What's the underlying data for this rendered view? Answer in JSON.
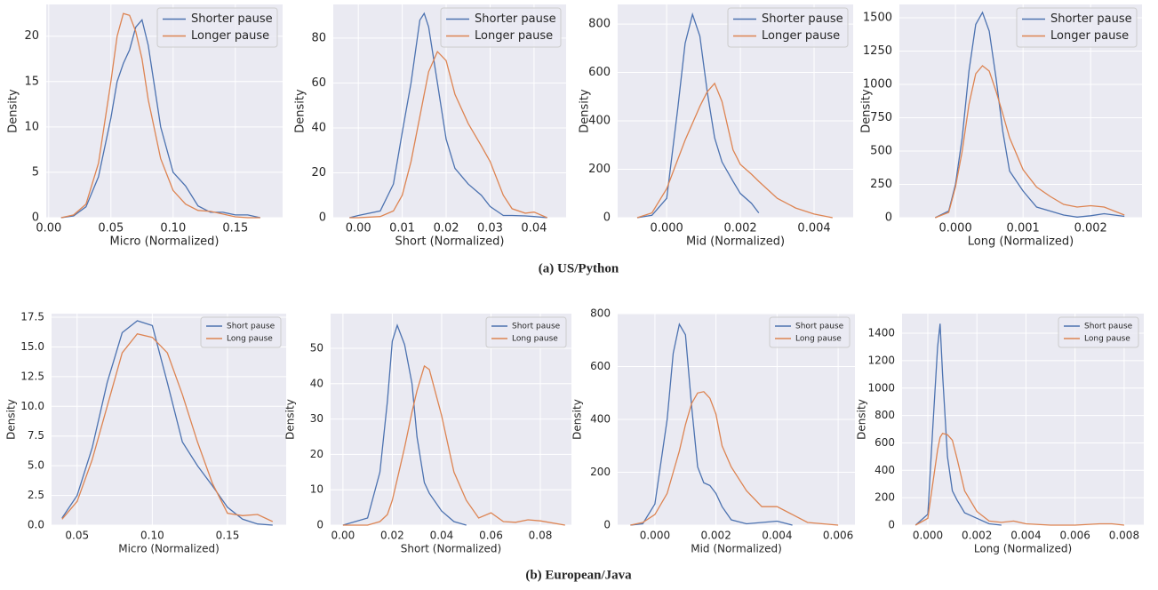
{
  "captions": [
    "(a) US/Python",
    "(b) European/Java"
  ],
  "chart_data": [
    {
      "type": "line",
      "xlabel": "Micro (Normalized)",
      "ylabel": "Density",
      "grid": true,
      "legend": "upper right",
      "x": [
        0.01,
        0.02,
        0.03,
        0.04,
        0.05,
        0.055,
        0.06,
        0.065,
        0.07,
        0.075,
        0.08,
        0.09,
        0.1,
        0.11,
        0.12,
        0.13,
        0.14,
        0.15,
        0.16,
        0.17
      ],
      "series": [
        {
          "name": "Shorter pause",
          "color": "#4c72b0",
          "values": [
            0,
            0.2,
            1.2,
            4.5,
            11,
            15,
            17,
            18.5,
            21,
            21.8,
            19,
            10,
            5,
            3.5,
            1.3,
            0.6,
            0.6,
            0.3,
            0.3,
            0
          ]
        },
        {
          "name": "Longer pause",
          "color": "#dd8452",
          "values": [
            0,
            0.3,
            1.5,
            6,
            15,
            20,
            22.5,
            22.3,
            20.5,
            17.5,
            13,
            6.5,
            3,
            1.5,
            0.8,
            0.7,
            0.4,
            0.1,
            0,
            0
          ]
        }
      ],
      "xlim": [
        -0.002,
        0.188
      ],
      "ylim": [
        0,
        23.5
      ],
      "xticks": [
        {
          "value": 0,
          "label": "0.00"
        },
        {
          "value": 0.05,
          "label": "0.05"
        },
        {
          "value": 0.1,
          "label": "0.10"
        },
        {
          "value": 0.15,
          "label": "0.15"
        }
      ],
      "yticks": [
        0,
        5,
        10,
        15,
        20
      ]
    },
    {
      "type": "line",
      "xlabel": "Short (Normalized)",
      "ylabel": "Density",
      "grid": true,
      "legend": "upper right",
      "x": [
        -0.002,
        0,
        0.005,
        0.008,
        0.01,
        0.012,
        0.014,
        0.015,
        0.016,
        0.018,
        0.02,
        0.022,
        0.025,
        0.028,
        0.03,
        0.033,
        0.035,
        0.038,
        0.04,
        0.043
      ],
      "series": [
        {
          "name": "Shorter pause",
          "color": "#4c72b0",
          "values": [
            0,
            1,
            3,
            15,
            38,
            60,
            88,
            91,
            85,
            60,
            35,
            22,
            15,
            10,
            5,
            1,
            1,
            0.8,
            0.5,
            0
          ]
        },
        {
          "name": "Longer pause",
          "color": "#dd8452",
          "values": [
            0,
            0,
            0.5,
            3,
            10,
            25,
            45,
            55,
            65,
            74,
            70,
            55,
            42,
            32,
            25,
            10,
            4,
            2,
            2.5,
            0
          ]
        }
      ],
      "xlim": [
        -0.0057,
        0.0473
      ],
      "ylim": [
        0,
        95
      ],
      "xticks": [
        {
          "value": 0,
          "label": "0.00"
        },
        {
          "value": 0.01,
          "label": "0.01"
        },
        {
          "value": 0.02,
          "label": "0.02"
        },
        {
          "value": 0.03,
          "label": "0.03"
        },
        {
          "value": 0.04,
          "label": "0.04"
        }
      ],
      "yticks": [
        0,
        20,
        40,
        60,
        80
      ]
    },
    {
      "type": "line",
      "xlabel": "Mid (Normalized)",
      "ylabel": "Density",
      "grid": true,
      "legend": "upper right",
      "x": [
        -0.0008,
        -0.0004,
        0,
        0.0003,
        0.0005,
        0.0007,
        0.0009,
        0.0011,
        0.0013,
        0.0015,
        0.0018,
        0.002,
        0.0023,
        0.0025,
        0.003,
        0.0035,
        0.004,
        0.0045
      ],
      "series": [
        {
          "name": "Shorter pause",
          "color": "#4c72b0",
          "values": [
            0,
            10,
            80,
            450,
            720,
            840,
            750,
            520,
            330,
            230,
            150,
            100,
            60,
            20,
            null,
            null,
            null,
            null
          ]
        },
        {
          "name": "Longer pause",
          "color": "#dd8452",
          "values": [
            0,
            20,
            120,
            240,
            320,
            390,
            460,
            520,
            555,
            480,
            280,
            220,
            180,
            150,
            80,
            40,
            15,
            0
          ]
        }
      ],
      "xlim": [
        -0.00133,
        0.00506
      ],
      "ylim": [
        0,
        881
      ],
      "xticks": [
        {
          "value": 0,
          "label": "0.000"
        },
        {
          "value": 0.002,
          "label": "0.002"
        },
        {
          "value": 0.004,
          "label": "0.004"
        }
      ],
      "yticks": [
        0,
        200,
        400,
        600,
        800
      ]
    },
    {
      "type": "line",
      "xlabel": "Long (Normalized)",
      "ylabel": "Density",
      "grid": true,
      "legend": "upper right",
      "x": [
        -0.0003,
        -0.0001,
        0,
        0.0001,
        0.0002,
        0.0003,
        0.0004,
        0.0005,
        0.0006,
        0.0007,
        0.0008,
        0.001,
        0.0012,
        0.0014,
        0.0016,
        0.0018,
        0.002,
        0.0022,
        0.0025
      ],
      "series": [
        {
          "name": "Shorter pause",
          "color": "#4c72b0",
          "values": [
            0,
            50,
            250,
            600,
            1100,
            1450,
            1540,
            1400,
            1050,
            650,
            350,
            200,
            80,
            50,
            20,
            5,
            15,
            30,
            10
          ]
        },
        {
          "name": "Longer pause",
          "color": "#dd8452",
          "values": [
            0,
            40,
            230,
            500,
            850,
            1080,
            1140,
            1100,
            950,
            780,
            600,
            360,
            230,
            160,
            100,
            80,
            90,
            80,
            20
          ]
        }
      ],
      "xlim": [
        -0.00083,
        0.00276
      ],
      "ylim": [
        0,
        1600
      ],
      "xticks": [
        {
          "value": 0,
          "label": "0.000"
        },
        {
          "value": 0.001,
          "label": "0.001"
        },
        {
          "value": 0.002,
          "label": "0.002"
        }
      ],
      "yticks": [
        0,
        250,
        500,
        750,
        1000,
        1250,
        1500
      ]
    },
    {
      "type": "line",
      "xlabel": "Micro (Normalized)",
      "ylabel": "Density",
      "grid": true,
      "legend": "upper right",
      "x": [
        0.04,
        0.05,
        0.06,
        0.07,
        0.08,
        0.09,
        0.1,
        0.11,
        0.12,
        0.13,
        0.14,
        0.15,
        0.16,
        0.17,
        0.18
      ],
      "series": [
        {
          "name": "Short pause",
          "color": "#4c72b0",
          "values": [
            0.6,
            2.5,
            6.5,
            12,
            16.2,
            17.2,
            16.8,
            12,
            7,
            5,
            3.3,
            1.5,
            0.5,
            0.1,
            0
          ]
        },
        {
          "name": "Long pause",
          "color": "#dd8452",
          "values": [
            0.5,
            2,
            5.5,
            10,
            14.5,
            16.1,
            15.8,
            14.5,
            11,
            7,
            3.5,
            1,
            0.8,
            0.9,
            0.3
          ]
        }
      ],
      "xlim": [
        0.033,
        0.189
      ],
      "ylim": [
        0,
        17.8
      ],
      "xticks": [
        {
          "value": 0.05,
          "label": "0.05"
        },
        {
          "value": 0.1,
          "label": "0.10"
        },
        {
          "value": 0.15,
          "label": "0.15"
        }
      ],
      "yticks": [
        {
          "value": 0,
          "label": "0.0"
        },
        2.5,
        {
          "value": 5,
          "label": "5.0"
        },
        7.5,
        {
          "value": 10,
          "label": "10.0"
        },
        12.5,
        {
          "value": 15,
          "label": "15.0"
        },
        17.5
      ]
    },
    {
      "type": "line",
      "xlabel": "Short (Normalized)",
      "ylabel": "Density",
      "grid": true,
      "legend": "upper right",
      "x": [
        0,
        0.01,
        0.015,
        0.018,
        0.02,
        0.022,
        0.025,
        0.028,
        0.03,
        0.033,
        0.035,
        0.04,
        0.045,
        0.05,
        0.055,
        0.06,
        0.065,
        0.07,
        0.075,
        0.08,
        0.09
      ],
      "series": [
        {
          "name": "Short pause",
          "color": "#4c72b0",
          "values": [
            0,
            2,
            15,
            35,
            52,
            56.5,
            51,
            40,
            25,
            12,
            9,
            4,
            1,
            0,
            null,
            null,
            null,
            null,
            null,
            null,
            null
          ]
        },
        {
          "name": "Long pause",
          "color": "#dd8452",
          "values": [
            0,
            0,
            1,
            3,
            7,
            13,
            22,
            32,
            38,
            45,
            44,
            31,
            15,
            7,
            2,
            3.5,
            1,
            0.8,
            1.5,
            1.2,
            0
          ]
        }
      ],
      "xlim": [
        -0.005,
        0.0926
      ],
      "ylim": [
        0,
        59.8
      ],
      "xticks": [
        {
          "value": 0,
          "label": "0.00"
        },
        {
          "value": 0.02,
          "label": "0.02"
        },
        {
          "value": 0.04,
          "label": "0.04"
        },
        {
          "value": 0.06,
          "label": "0.06"
        },
        {
          "value": 0.08,
          "label": "0.08"
        }
      ],
      "yticks": [
        0,
        10,
        20,
        30,
        40,
        50
      ]
    },
    {
      "type": "line",
      "xlabel": "Mid (Normalized)",
      "ylabel": "Density",
      "grid": true,
      "legend": "upper right",
      "x": [
        -0.0008,
        -0.0004,
        0,
        0.0004,
        0.0006,
        0.0008,
        0.001,
        0.0012,
        0.0014,
        0.0016,
        0.0018,
        0.002,
        0.0022,
        0.0025,
        0.003,
        0.0035,
        0.004,
        0.0045,
        0.005,
        0.006
      ],
      "series": [
        {
          "name": "Short pause",
          "color": "#4c72b0",
          "values": [
            0,
            5,
            80,
            400,
            650,
            760,
            720,
            450,
            220,
            160,
            150,
            120,
            70,
            20,
            5,
            10,
            15,
            0,
            null,
            null
          ]
        },
        {
          "name": "Long pause",
          "color": "#dd8452",
          "values": [
            0,
            10,
            40,
            120,
            200,
            280,
            380,
            460,
            500,
            505,
            480,
            420,
            300,
            220,
            130,
            70,
            70,
            40,
            10,
            0
          ]
        }
      ],
      "xlim": [
        -0.00122,
        0.00655
      ],
      "ylim": [
        0,
        800
      ],
      "xticks": [
        {
          "value": 0,
          "label": "0.000"
        },
        {
          "value": 0.002,
          "label": "0.002"
        },
        {
          "value": 0.004,
          "label": "0.004"
        },
        {
          "value": 0.006,
          "label": "0.006"
        }
      ],
      "yticks": [
        0,
        200,
        400,
        600,
        800
      ]
    },
    {
      "type": "line",
      "xlabel": "Long (Normalized)",
      "ylabel": "Density",
      "grid": true,
      "legend": "upper right",
      "x": [
        -0.0005,
        0,
        0.0002,
        0.0004,
        0.0005,
        0.0006,
        0.0008,
        0.001,
        0.0012,
        0.0015,
        0.002,
        0.0025,
        0.003,
        0.0035,
        0.004,
        0.005,
        0.006,
        0.007,
        0.0075,
        0.008
      ],
      "series": [
        {
          "name": "Short pause",
          "color": "#4c72b0",
          "values": [
            0,
            80,
            700,
            1300,
            1470,
            1100,
            500,
            250,
            180,
            90,
            50,
            10,
            0,
            null,
            null,
            null,
            null,
            null,
            null,
            null
          ]
        },
        {
          "name": "Long pause",
          "color": "#dd8452",
          "values": [
            0,
            50,
            300,
            550,
            640,
            670,
            660,
            620,
            480,
            250,
            100,
            30,
            20,
            30,
            10,
            0,
            0,
            10,
            10,
            0
          ]
        }
      ],
      "xlim": [
        -0.00105,
        0.0088
      ],
      "ylim": [
        0,
        1543
      ],
      "xticks": [
        {
          "value": 0,
          "label": "0.000"
        },
        {
          "value": 0.002,
          "label": "0.002"
        },
        {
          "value": 0.004,
          "label": "0.004"
        },
        {
          "value": 0.006,
          "label": "0.006"
        },
        {
          "value": 0.008,
          "label": "0.008"
        }
      ],
      "yticks": [
        0,
        200,
        400,
        600,
        800,
        1000,
        1200,
        1400
      ]
    }
  ]
}
